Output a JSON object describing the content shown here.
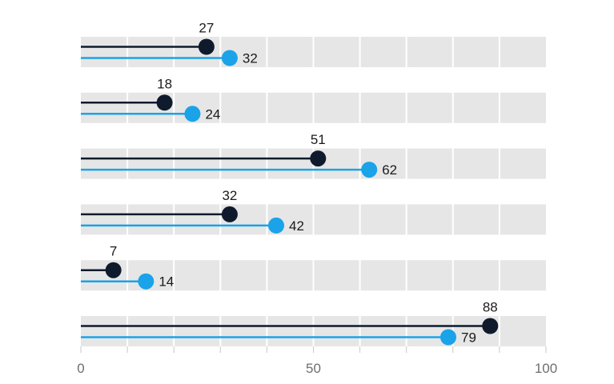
{
  "chart_data": {
    "type": "lollipop",
    "xlim": [
      0,
      100
    ],
    "x_ticks": [
      "0",
      "50",
      "100"
    ],
    "grid": true,
    "series": [
      {
        "color": "#0f1b2d",
        "values": [
          27,
          18,
          51,
          32,
          7,
          88
        ]
      },
      {
        "color": "#1aa3e8",
        "values": [
          32,
          24,
          62,
          42,
          14,
          79
        ]
      }
    ],
    "band_color": "#e6e6e6",
    "grid_color": "#ffffff"
  }
}
